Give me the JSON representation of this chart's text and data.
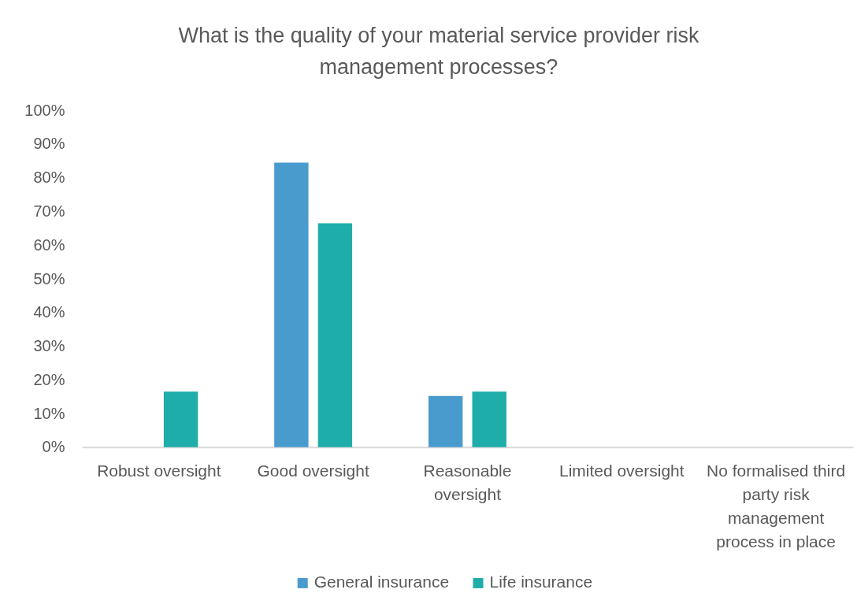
{
  "chart_data": {
    "type": "bar",
    "title": "What is the quality of your material service provider risk management processes?",
    "categories": [
      "Robust oversight",
      "Good oversight",
      "Reasonable oversight",
      "Limited oversight",
      "No formalised third party risk management process in place"
    ],
    "series": [
      {
        "name": "General insurance",
        "color": "#4a9bcd",
        "values": [
          0,
          84.5,
          15.2,
          0,
          0
        ]
      },
      {
        "name": "Life insurance",
        "color": "#1eada9",
        "values": [
          16.5,
          66.5,
          16.5,
          0,
          0
        ]
      }
    ],
    "ylim": [
      0,
      100
    ],
    "yticks": [
      {
        "value": 0,
        "label": "0%"
      },
      {
        "value": 10,
        "label": "10%"
      },
      {
        "value": 20,
        "label": "20%"
      },
      {
        "value": 30,
        "label": "30%"
      },
      {
        "value": 40,
        "label": "40%"
      },
      {
        "value": 50,
        "label": "50%"
      },
      {
        "value": 60,
        "label": "60%"
      },
      {
        "value": 70,
        "label": "70%"
      },
      {
        "value": 80,
        "label": "80%"
      },
      {
        "value": 90,
        "label": "90%"
      },
      {
        "value": 100,
        "label": "100%"
      }
    ],
    "legend": "bottom"
  }
}
